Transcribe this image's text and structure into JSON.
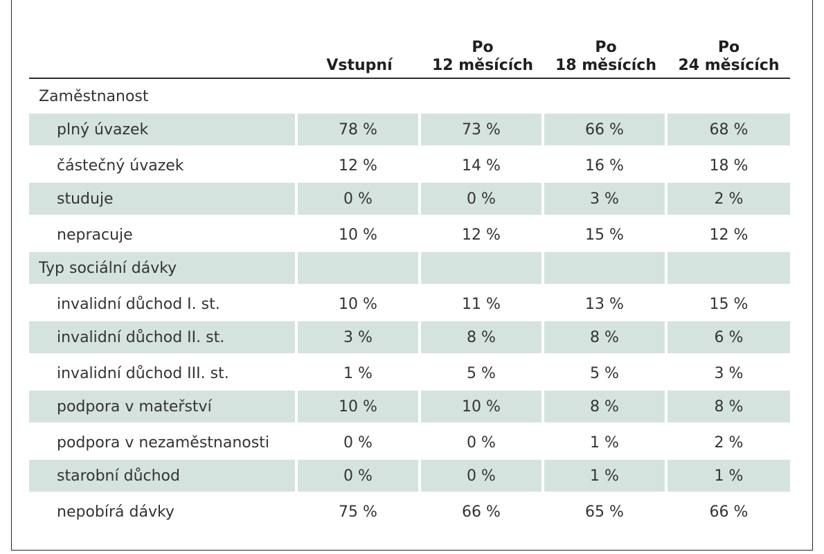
{
  "header": {
    "c0": "",
    "c1": "Vstupní",
    "c2_l1": "Po",
    "c2_l2": "12 měsících",
    "c3_l1": "Po",
    "c3_l2": "18 měsících",
    "c4_l1": "Po",
    "c4_l2": "24 měsících"
  },
  "sections": [
    {
      "title": "Zaměstnanost",
      "rows": [
        {
          "label": "plný úvazek",
          "values": [
            "78 %",
            "73 %",
            "66 %",
            "68 %"
          ]
        },
        {
          "label": "částečný úvazek",
          "values": [
            "12 %",
            "14 %",
            "16 %",
            "18 %"
          ]
        },
        {
          "label": "studuje",
          "values": [
            "0 %",
            "0 %",
            "3 %",
            "2 %"
          ]
        },
        {
          "label": "nepracuje",
          "values": [
            "10 %",
            "12 %",
            "15 %",
            "12 %"
          ]
        }
      ]
    },
    {
      "title": "Typ sociální dávky",
      "rows": [
        {
          "label": "invalidní důchod I. st.",
          "values": [
            "10 %",
            "11 %",
            "13 %",
            "15 %"
          ]
        },
        {
          "label": "invalidní důchod II. st.",
          "values": [
            "3 %",
            "8 %",
            "8 %",
            "6 %"
          ]
        },
        {
          "label": "invalidní důchod III. st.",
          "values": [
            "1 %",
            "5 %",
            "5 %",
            "3 %"
          ]
        },
        {
          "label": "podpora v mateřství",
          "values": [
            "10 %",
            "10 %",
            "8 %",
            "8 %"
          ]
        },
        {
          "label": "podpora v nezaměstnanosti",
          "values": [
            "0 %",
            "0 %",
            "1 %",
            "2 %"
          ]
        },
        {
          "label": "starobní důchod",
          "values": [
            "0 %",
            "0 %",
            "1 %",
            "1 %"
          ]
        },
        {
          "label": "nepobírá dávky",
          "values": [
            "75 %",
            "66 %",
            "65 %",
            "66 %"
          ]
        }
      ]
    }
  ],
  "colors": {
    "row_shade": "#d5e3df",
    "rule": "#2a2a2a"
  }
}
